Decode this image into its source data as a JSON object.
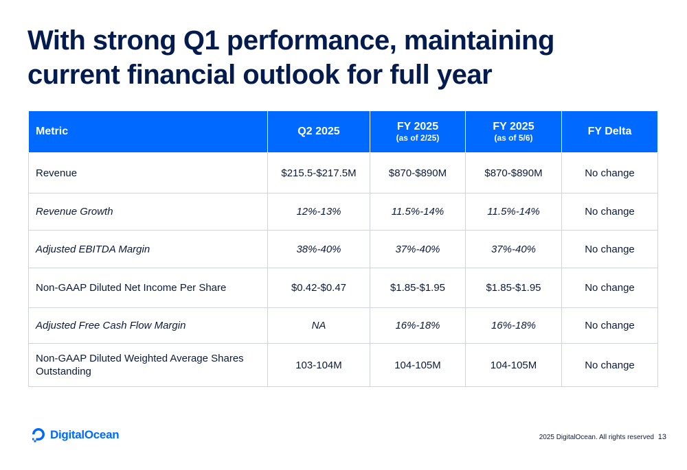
{
  "title": "With strong Q1 performance, maintaining current financial outlook for full year",
  "table": {
    "headers": {
      "metric": "Metric",
      "q2": "Q2 2025",
      "fy_prior": {
        "main": "FY 2025",
        "sub": "(as of 2/25)"
      },
      "fy_current": {
        "main": "FY 2025",
        "sub": "(as of 5/6)"
      },
      "delta": "FY Delta"
    },
    "rows": [
      {
        "metric": "Revenue",
        "q2": "$215.5-$217.5M",
        "fy_prior": "$870-$890M",
        "fy_current": "$870-$890M",
        "delta": "No change",
        "italic": false
      },
      {
        "metric": "Revenue Growth",
        "q2": "12%-13%",
        "fy_prior": "11.5%-14%",
        "fy_current": "11.5%-14%",
        "delta": "No change",
        "italic": true
      },
      {
        "metric": "Adjusted EBITDA Margin",
        "q2": "38%-40%",
        "fy_prior": "37%-40%",
        "fy_current": "37%-40%",
        "delta": "No change",
        "italic": true
      },
      {
        "metric": "Non-GAAP Diluted Net Income Per Share",
        "q2": "$0.42-$0.47",
        "fy_prior": "$1.85-$1.95",
        "fy_current": "$1.85-$1.95",
        "delta": "No change",
        "italic": false
      },
      {
        "metric": "Adjusted Free Cash Flow Margin",
        "q2": "NA",
        "fy_prior": "16%-18%",
        "fy_current": "16%-18%",
        "delta": "No change",
        "italic": true
      },
      {
        "metric": "Non-GAAP Diluted Weighted Average Shares Outstanding",
        "q2": "103-104M",
        "fy_prior": "104-105M",
        "fy_current": "104-105M",
        "delta": "No change",
        "italic": false
      }
    ]
  },
  "footer": {
    "logo_text": "DigitalOcean",
    "copyright": "2025 DigitalOcean. All rights reserved",
    "page_number": "13"
  },
  "colors": {
    "brand_blue": "#0069ff",
    "title_navy": "#031b4e"
  },
  "icons": {
    "logo": "digitalocean-logo-icon"
  }
}
